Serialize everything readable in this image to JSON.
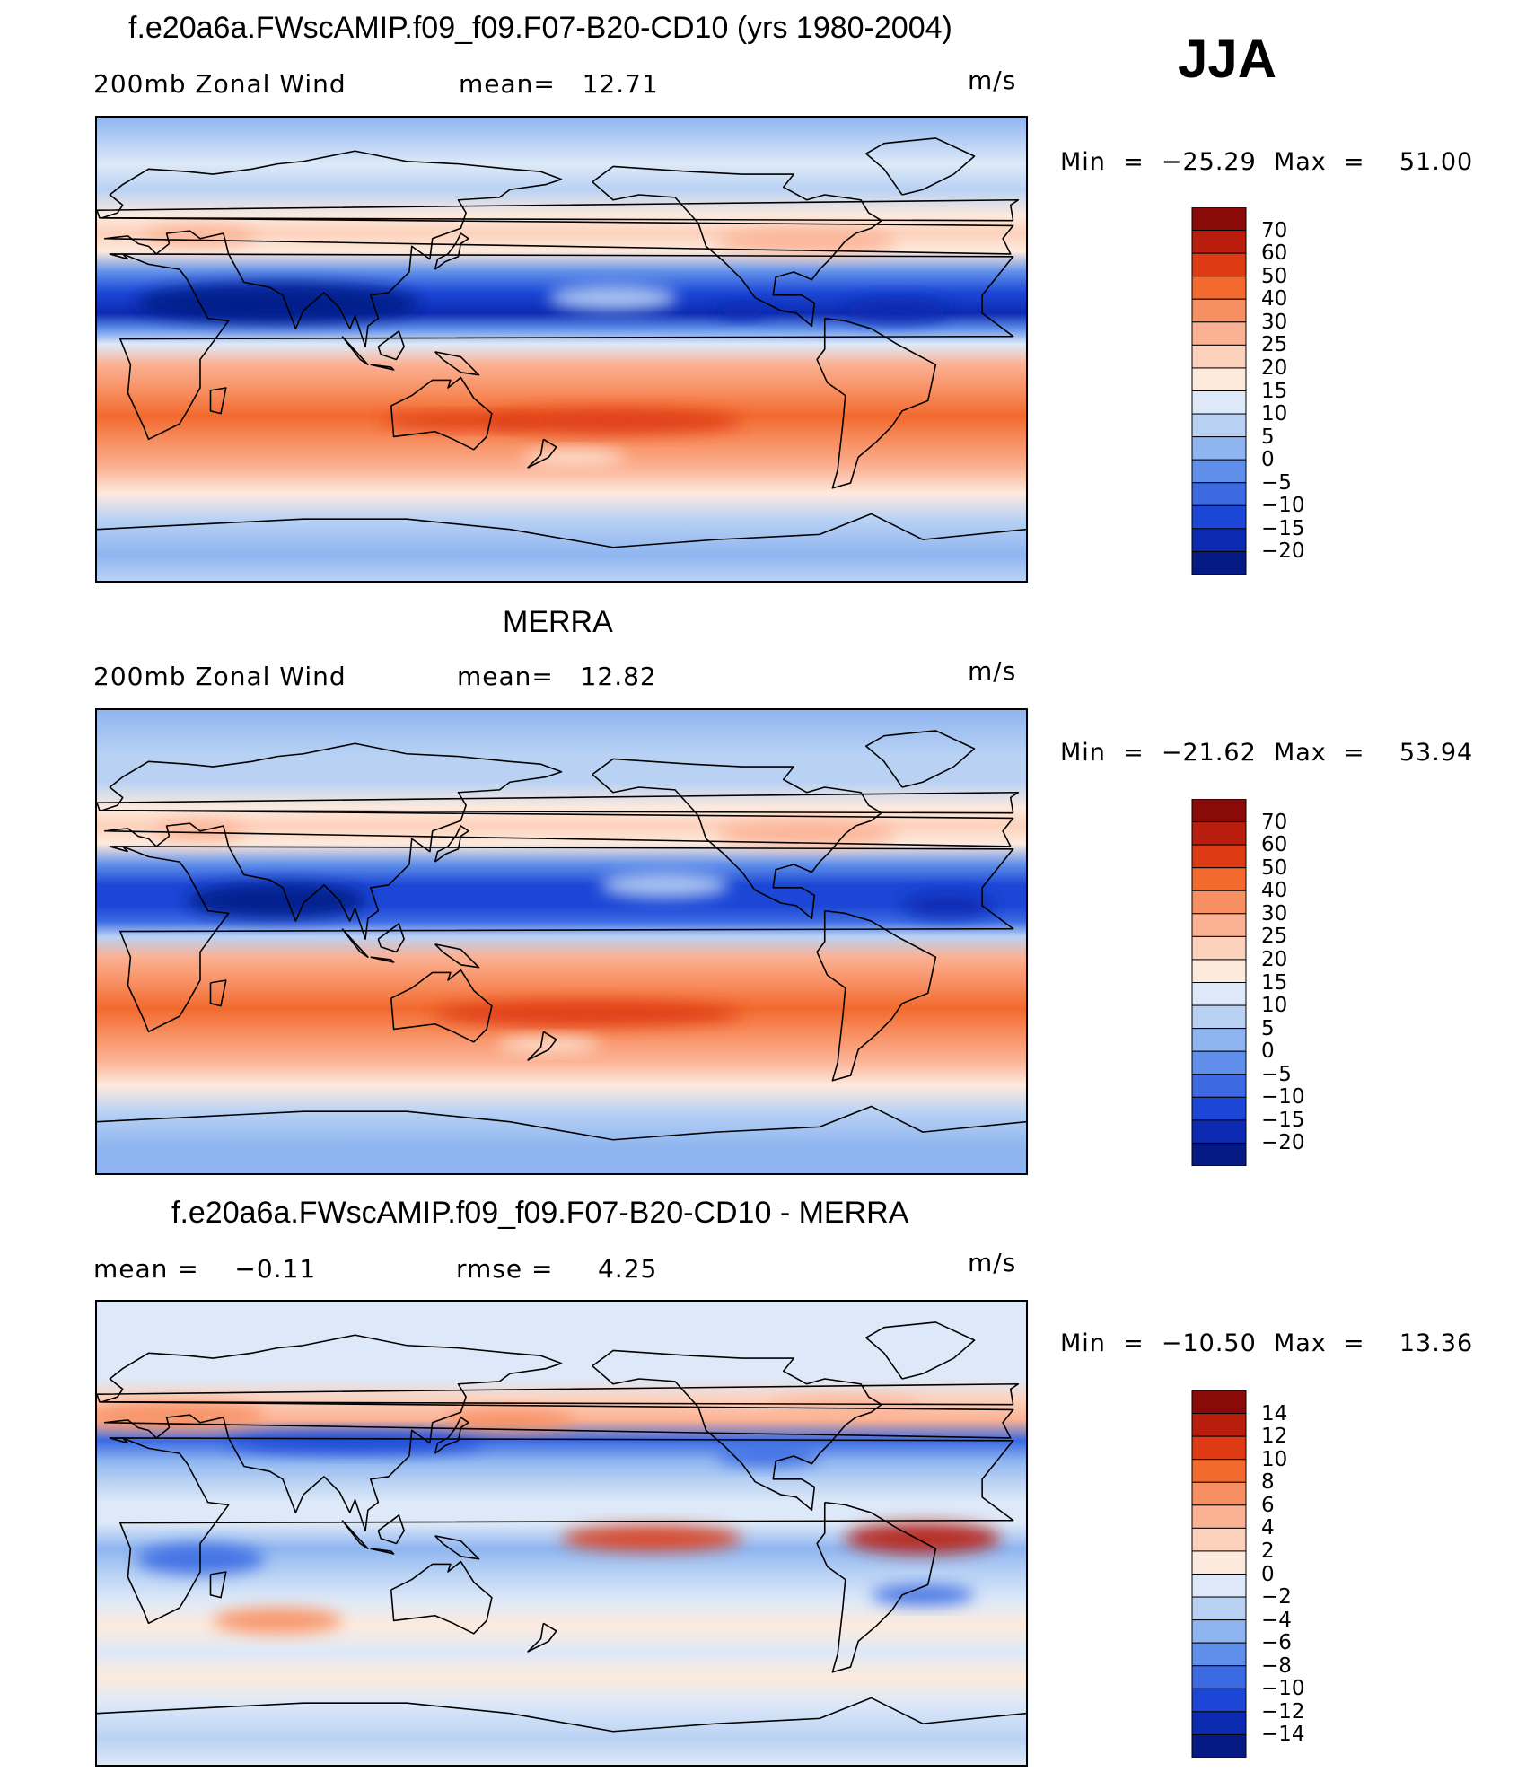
{
  "season_label": "JJA",
  "panels": [
    {
      "title": "f.e20a6a.FWscAMIP.f09_f09.F07-B20-CD10 (yrs 1980-2004)",
      "left_label": "200mb Zonal Wind",
      "mid_label": "mean=   12.71",
      "units": "m/s",
      "minmax": "Min  =  −25.29  Max  =    51.00",
      "colorbar": {
        "labels": [
          "70",
          "60",
          "50",
          "40",
          "30",
          "25",
          "20",
          "15",
          "10",
          "5",
          "0",
          "−5",
          "−10",
          "−15",
          "−20"
        ],
        "colors": [
          "#8a0a0a",
          "#b81d0d",
          "#de3b14",
          "#f26a2e",
          "#f88f62",
          "#fbb193",
          "#fdd2bd",
          "#fdeadd",
          "#dde9f8",
          "#b9d2f4",
          "#8fb5f0",
          "#5f8fea",
          "#3b6ae3",
          "#1c47d6",
          "#0c2bb2",
          "#061a86"
        ]
      },
      "field": {
        "bands": [
          {
            "lat": 90,
            "c": 10
          },
          {
            "lat": 72,
            "c": 8
          },
          {
            "lat": 62,
            "c": 9
          },
          {
            "lat": 52,
            "c": 7
          },
          {
            "lat": 45,
            "c": 6
          },
          {
            "lat": 38,
            "c": 7
          },
          {
            "lat": 30,
            "c": 11
          },
          {
            "lat": 22,
            "c": 13
          },
          {
            "lat": 14,
            "c": 14
          },
          {
            "lat": 8,
            "c": 11
          },
          {
            "lat": 2,
            "c": 8
          },
          {
            "lat": -6,
            "c": 5
          },
          {
            "lat": -16,
            "c": 4
          },
          {
            "lat": -26,
            "c": 3
          },
          {
            "lat": -36,
            "c": 4
          },
          {
            "lat": -46,
            "c": 5
          },
          {
            "lat": -56,
            "c": 7
          },
          {
            "lat": -66,
            "c": 9
          },
          {
            "lat": -80,
            "c": 10
          },
          {
            "lat": -90,
            "c": 9
          }
        ],
        "blobs": [
          {
            "lon": 70,
            "lat": 18,
            "rx": 55,
            "ry": 8,
            "c": 15
          },
          {
            "lon": 40,
            "lat": 44,
            "rx": 22,
            "ry": 4,
            "c": 5
          },
          {
            "lon": 310,
            "lat": 15,
            "rx": 20,
            "ry": 5,
            "c": 14
          },
          {
            "lon": 250,
            "lat": 15,
            "rx": 10,
            "ry": 3,
            "c": 14
          },
          {
            "lon": 200,
            "lat": -28,
            "rx": 50,
            "ry": 5,
            "c": 2
          },
          {
            "lon": 140,
            "lat": -28,
            "rx": 30,
            "ry": 3,
            "c": 2
          },
          {
            "lon": 185,
            "lat": -42,
            "rx": 20,
            "ry": 3,
            "c": 7
          },
          {
            "lon": 275,
            "lat": 42,
            "rx": 35,
            "ry": 5,
            "c": 5
          },
          {
            "lon": 200,
            "lat": 20,
            "rx": 25,
            "ry": 5,
            "c": 9
          }
        ]
      }
    },
    {
      "title": "MERRA",
      "left_label": "200mb Zonal Wind",
      "mid_label": "mean=   12.82",
      "units": "m/s",
      "minmax": "Min  =  −21.62  Max  =    53.94",
      "colorbar": {
        "labels": [
          "70",
          "60",
          "50",
          "40",
          "30",
          "25",
          "20",
          "15",
          "10",
          "5",
          "0",
          "−5",
          "−10",
          "−15",
          "−20"
        ],
        "colors": [
          "#8a0a0a",
          "#b81d0d",
          "#de3b14",
          "#f26a2e",
          "#f88f62",
          "#fbb193",
          "#fdd2bd",
          "#fdeadd",
          "#dde9f8",
          "#b9d2f4",
          "#8fb5f0",
          "#5f8fea",
          "#3b6ae3",
          "#1c47d6",
          "#0c2bb2",
          "#061a86"
        ]
      },
      "field": {
        "bands": [
          {
            "lat": 90,
            "c": 10
          },
          {
            "lat": 72,
            "c": 9
          },
          {
            "lat": 62,
            "c": 9
          },
          {
            "lat": 52,
            "c": 7
          },
          {
            "lat": 45,
            "c": 6
          },
          {
            "lat": 38,
            "c": 7
          },
          {
            "lat": 30,
            "c": 11
          },
          {
            "lat": 22,
            "c": 13
          },
          {
            "lat": 14,
            "c": 13
          },
          {
            "lat": 8,
            "c": 12
          },
          {
            "lat": 2,
            "c": 9
          },
          {
            "lat": -6,
            "c": 5
          },
          {
            "lat": -16,
            "c": 4
          },
          {
            "lat": -26,
            "c": 3
          },
          {
            "lat": -36,
            "c": 4
          },
          {
            "lat": -46,
            "c": 5
          },
          {
            "lat": -56,
            "c": 7
          },
          {
            "lat": -66,
            "c": 9
          },
          {
            "lat": -80,
            "c": 10
          },
          {
            "lat": -90,
            "c": 10
          }
        ],
        "blobs": [
          {
            "lon": 70,
            "lat": 16,
            "rx": 35,
            "ry": 7,
            "c": 15
          },
          {
            "lon": 40,
            "lat": 43,
            "rx": 18,
            "ry": 4,
            "c": 5
          },
          {
            "lon": 330,
            "lat": 14,
            "rx": 18,
            "ry": 5,
            "c": 14
          },
          {
            "lon": 190,
            "lat": -28,
            "rx": 60,
            "ry": 5,
            "c": 2
          },
          {
            "lon": 275,
            "lat": 42,
            "rx": 35,
            "ry": 5,
            "c": 5
          },
          {
            "lon": 175,
            "lat": -40,
            "rx": 20,
            "ry": 3,
            "c": 7
          },
          {
            "lon": 220,
            "lat": 22,
            "rx": 25,
            "ry": 5,
            "c": 9
          }
        ]
      }
    },
    {
      "title": "f.e20a6a.FWscAMIP.f09_f09.F07-B20-CD10 - MERRA",
      "left_label": "mean =    −0.11",
      "mid_label": "rmse =     4.25",
      "units": "m/s",
      "minmax": "Min  =  −10.50  Max  =    13.36",
      "colorbar": {
        "labels": [
          "14",
          "12",
          "10",
          "8",
          "6",
          "4",
          "2",
          "0",
          "−2",
          "−4",
          "−6",
          "−8",
          "−10",
          "−12",
          "−14"
        ],
        "colors": [
          "#8a0a0a",
          "#b81d0d",
          "#de3b14",
          "#f26a2e",
          "#f88f62",
          "#fbb193",
          "#fdd2bd",
          "#fdeadd",
          "#dde9f8",
          "#b9d2f4",
          "#8fb5f0",
          "#5f8fea",
          "#3b6ae3",
          "#1c47d6",
          "#0c2bb2",
          "#061a86"
        ]
      },
      "field": {
        "bands": [
          {
            "lat": 90,
            "c": 8
          },
          {
            "lat": 72,
            "c": 8
          },
          {
            "lat": 60,
            "c": 8
          },
          {
            "lat": 52,
            "c": 6
          },
          {
            "lat": 44,
            "c": 5
          },
          {
            "lat": 36,
            "c": 12
          },
          {
            "lat": 28,
            "c": 10
          },
          {
            "lat": 20,
            "c": 9
          },
          {
            "lat": 12,
            "c": 8
          },
          {
            "lat": 4,
            "c": 8
          },
          {
            "lat": -6,
            "c": 10
          },
          {
            "lat": -16,
            "c": 9
          },
          {
            "lat": -26,
            "c": 8
          },
          {
            "lat": -36,
            "c": 7
          },
          {
            "lat": -46,
            "c": 8
          },
          {
            "lat": -56,
            "c": 7
          },
          {
            "lat": -66,
            "c": 8
          },
          {
            "lat": -80,
            "c": 9
          },
          {
            "lat": -90,
            "c": 8
          }
        ],
        "blobs": [
          {
            "lon": 30,
            "lat": 46,
            "rx": 35,
            "ry": 5,
            "c": 4
          },
          {
            "lon": 100,
            "lat": 35,
            "rx": 50,
            "ry": 4,
            "c": 13
          },
          {
            "lon": 215,
            "lat": -2,
            "rx": 35,
            "ry": 5,
            "c": 2
          },
          {
            "lon": 320,
            "lat": -2,
            "rx": 30,
            "ry": 6,
            "c": 1
          },
          {
            "lon": 40,
            "lat": -10,
            "rx": 25,
            "ry": 6,
            "c": 12
          },
          {
            "lon": 70,
            "lat": -34,
            "rx": 25,
            "ry": 5,
            "c": 4
          },
          {
            "lon": 320,
            "lat": -24,
            "rx": 20,
            "ry": 4,
            "c": 12
          },
          {
            "lon": 160,
            "lat": 44,
            "rx": 25,
            "ry": 4,
            "c": 4
          },
          {
            "lon": 260,
            "lat": 30,
            "rx": 20,
            "ry": 4,
            "c": 12
          },
          {
            "lon": 290,
            "lat": 50,
            "rx": 30,
            "ry": 3,
            "c": 5
          }
        ]
      }
    }
  ]
}
